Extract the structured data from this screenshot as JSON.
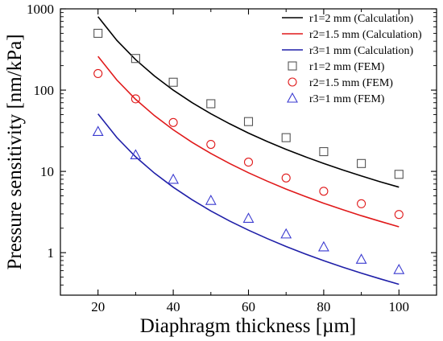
{
  "chart_data": {
    "type": "line",
    "xlabel": "Diaphragm thickness [µm]",
    "ylabel": "Pressure sensitivity [nm/kPa]",
    "xlim": [
      10,
      110
    ],
    "ylim": [
      0.3,
      1000
    ],
    "y_scale": "log",
    "x_ticks": [
      20,
      40,
      60,
      80,
      100
    ],
    "x_tick_labels": [
      "20",
      "40",
      "60",
      "80",
      "100"
    ],
    "y_ticks": [
      1,
      10,
      100,
      1000
    ],
    "y_tick_labels": [
      "1",
      "10",
      "100",
      "1000"
    ],
    "grid": false,
    "legend_position": "top-right",
    "series": [
      {
        "name": "r1=2 mm (Calculation)",
        "kind": "line",
        "color": "#000000",
        "x": [
          20,
          25,
          30,
          35,
          40,
          45,
          50,
          55,
          60,
          65,
          70,
          75,
          80,
          85,
          90,
          95,
          100
        ],
        "y": [
          800,
          409.6,
          237,
          149.3,
          100,
          70.2,
          51.2,
          38.5,
          29.6,
          23.3,
          18.66,
          15.17,
          12.5,
          10.42,
          8.78,
          7.46,
          6.4
        ]
      },
      {
        "name": "r2=1.5 mm (Calculation)",
        "kind": "line",
        "color": "#e0191a",
        "x": [
          20,
          25,
          30,
          35,
          40,
          45,
          50,
          55,
          60,
          65,
          70,
          75,
          80,
          85,
          90,
          95,
          100
        ],
        "y": [
          260,
          133.1,
          77,
          48.5,
          32.5,
          22.8,
          16.64,
          12.5,
          9.63,
          7.57,
          6.06,
          4.93,
          4.06,
          3.39,
          2.85,
          2.43,
          2.08
        ]
      },
      {
        "name": "r3=1 mm (Calculation)",
        "kind": "line",
        "color": "#1f1fa8",
        "x": [
          20,
          25,
          30,
          35,
          40,
          45,
          50,
          55,
          60,
          65,
          70,
          75,
          80,
          85,
          90,
          95,
          100
        ],
        "y": [
          51,
          26.1,
          15.1,
          9.52,
          6.38,
          4.48,
          3.26,
          2.45,
          1.89,
          1.49,
          1.19,
          0.967,
          0.797,
          0.665,
          0.56,
          0.476,
          0.408
        ]
      },
      {
        "name": "r1=2 mm (FEM)",
        "kind": "scatter",
        "marker": "square",
        "color": "#555555",
        "x": [
          20,
          30,
          40,
          50,
          60,
          70,
          80,
          90,
          100
        ],
        "y": [
          500,
          245,
          125,
          68,
          41,
          26,
          17.5,
          12.5,
          9.2
        ]
      },
      {
        "name": "r2=1.5 mm (FEM)",
        "kind": "scatter",
        "marker": "circle",
        "color": "#e0191a",
        "x": [
          20,
          30,
          40,
          50,
          60,
          70,
          80,
          90,
          100
        ],
        "y": [
          160,
          78,
          40,
          21.5,
          13,
          8.3,
          5.7,
          4.0,
          2.95
        ]
      },
      {
        "name": "r3=1 mm (FEM)",
        "kind": "scatter",
        "marker": "triangle",
        "color": "#3a3ad0",
        "x": [
          20,
          30,
          40,
          50,
          60,
          70,
          80,
          90,
          100
        ],
        "y": [
          31,
          16,
          8,
          4.4,
          2.65,
          1.7,
          1.18,
          0.83,
          0.62
        ]
      }
    ]
  }
}
